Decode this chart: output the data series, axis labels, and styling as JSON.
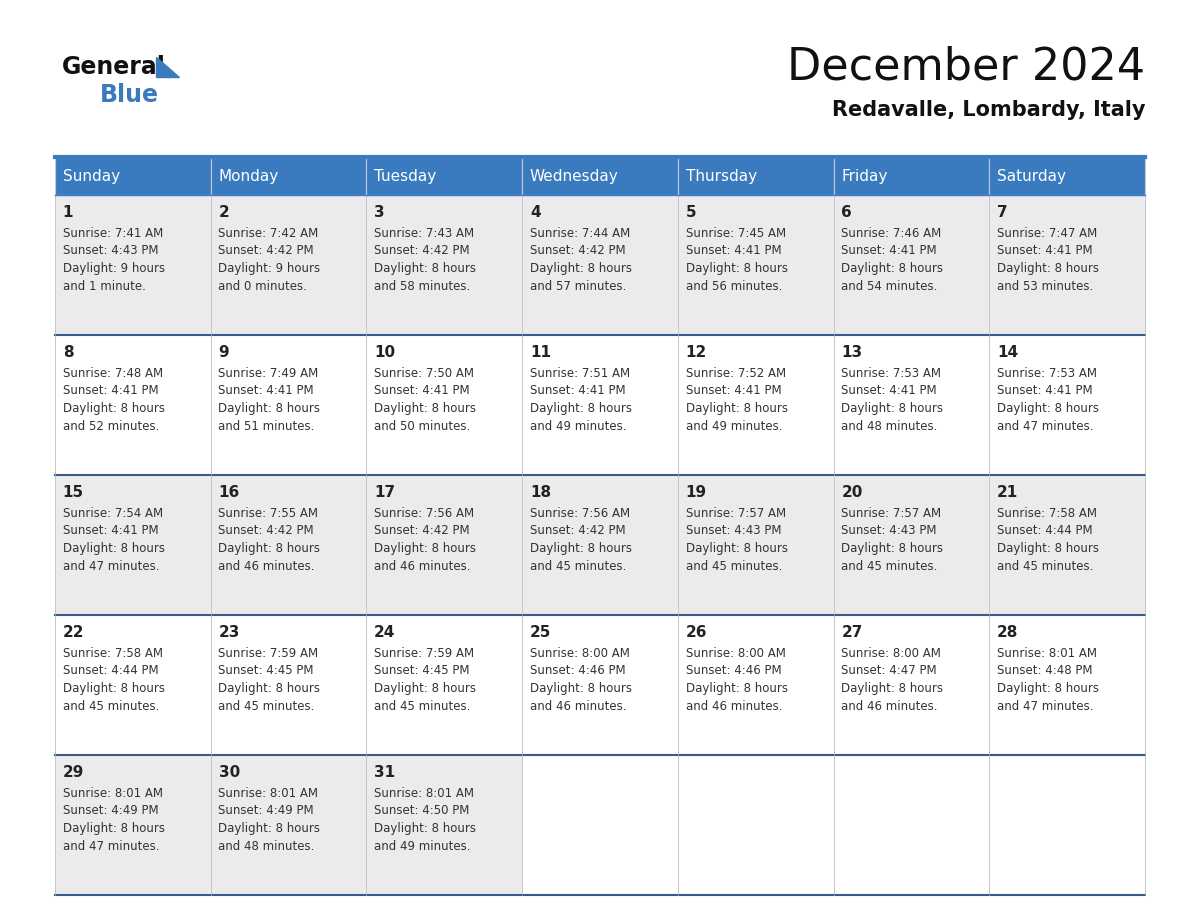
{
  "title": "December 2024",
  "subtitle": "Redavalle, Lombardy, Italy",
  "header_color": "#3a7abf",
  "header_text_color": "#ffffff",
  "cell_bg_even": "#ebebeb",
  "cell_bg_odd": "#ffffff",
  "day_names": [
    "Sunday",
    "Monday",
    "Tuesday",
    "Wednesday",
    "Thursday",
    "Friday",
    "Saturday"
  ],
  "days": [
    {
      "day": 1,
      "col": 0,
      "row": 0,
      "sunrise": "7:41 AM",
      "sunset": "4:43 PM",
      "daylight": "9 hours and 1 minute."
    },
    {
      "day": 2,
      "col": 1,
      "row": 0,
      "sunrise": "7:42 AM",
      "sunset": "4:42 PM",
      "daylight": "9 hours and 0 minutes."
    },
    {
      "day": 3,
      "col": 2,
      "row": 0,
      "sunrise": "7:43 AM",
      "sunset": "4:42 PM",
      "daylight": "8 hours and 58 minutes."
    },
    {
      "day": 4,
      "col": 3,
      "row": 0,
      "sunrise": "7:44 AM",
      "sunset": "4:42 PM",
      "daylight": "8 hours and 57 minutes."
    },
    {
      "day": 5,
      "col": 4,
      "row": 0,
      "sunrise": "7:45 AM",
      "sunset": "4:41 PM",
      "daylight": "8 hours and 56 minutes."
    },
    {
      "day": 6,
      "col": 5,
      "row": 0,
      "sunrise": "7:46 AM",
      "sunset": "4:41 PM",
      "daylight": "8 hours and 54 minutes."
    },
    {
      "day": 7,
      "col": 6,
      "row": 0,
      "sunrise": "7:47 AM",
      "sunset": "4:41 PM",
      "daylight": "8 hours and 53 minutes."
    },
    {
      "day": 8,
      "col": 0,
      "row": 1,
      "sunrise": "7:48 AM",
      "sunset": "4:41 PM",
      "daylight": "8 hours and 52 minutes."
    },
    {
      "day": 9,
      "col": 1,
      "row": 1,
      "sunrise": "7:49 AM",
      "sunset": "4:41 PM",
      "daylight": "8 hours and 51 minutes."
    },
    {
      "day": 10,
      "col": 2,
      "row": 1,
      "sunrise": "7:50 AM",
      "sunset": "4:41 PM",
      "daylight": "8 hours and 50 minutes."
    },
    {
      "day": 11,
      "col": 3,
      "row": 1,
      "sunrise": "7:51 AM",
      "sunset": "4:41 PM",
      "daylight": "8 hours and 49 minutes."
    },
    {
      "day": 12,
      "col": 4,
      "row": 1,
      "sunrise": "7:52 AM",
      "sunset": "4:41 PM",
      "daylight": "8 hours and 49 minutes."
    },
    {
      "day": 13,
      "col": 5,
      "row": 1,
      "sunrise": "7:53 AM",
      "sunset": "4:41 PM",
      "daylight": "8 hours and 48 minutes."
    },
    {
      "day": 14,
      "col": 6,
      "row": 1,
      "sunrise": "7:53 AM",
      "sunset": "4:41 PM",
      "daylight": "8 hours and 47 minutes."
    },
    {
      "day": 15,
      "col": 0,
      "row": 2,
      "sunrise": "7:54 AM",
      "sunset": "4:41 PM",
      "daylight": "8 hours and 47 minutes."
    },
    {
      "day": 16,
      "col": 1,
      "row": 2,
      "sunrise": "7:55 AM",
      "sunset": "4:42 PM",
      "daylight": "8 hours and 46 minutes."
    },
    {
      "day": 17,
      "col": 2,
      "row": 2,
      "sunrise": "7:56 AM",
      "sunset": "4:42 PM",
      "daylight": "8 hours and 46 minutes."
    },
    {
      "day": 18,
      "col": 3,
      "row": 2,
      "sunrise": "7:56 AM",
      "sunset": "4:42 PM",
      "daylight": "8 hours and 45 minutes."
    },
    {
      "day": 19,
      "col": 4,
      "row": 2,
      "sunrise": "7:57 AM",
      "sunset": "4:43 PM",
      "daylight": "8 hours and 45 minutes."
    },
    {
      "day": 20,
      "col": 5,
      "row": 2,
      "sunrise": "7:57 AM",
      "sunset": "4:43 PM",
      "daylight": "8 hours and 45 minutes."
    },
    {
      "day": 21,
      "col": 6,
      "row": 2,
      "sunrise": "7:58 AM",
      "sunset": "4:44 PM",
      "daylight": "8 hours and 45 minutes."
    },
    {
      "day": 22,
      "col": 0,
      "row": 3,
      "sunrise": "7:58 AM",
      "sunset": "4:44 PM",
      "daylight": "8 hours and 45 minutes."
    },
    {
      "day": 23,
      "col": 1,
      "row": 3,
      "sunrise": "7:59 AM",
      "sunset": "4:45 PM",
      "daylight": "8 hours and 45 minutes."
    },
    {
      "day": 24,
      "col": 2,
      "row": 3,
      "sunrise": "7:59 AM",
      "sunset": "4:45 PM",
      "daylight": "8 hours and 45 minutes."
    },
    {
      "day": 25,
      "col": 3,
      "row": 3,
      "sunrise": "8:00 AM",
      "sunset": "4:46 PM",
      "daylight": "8 hours and 46 minutes."
    },
    {
      "day": 26,
      "col": 4,
      "row": 3,
      "sunrise": "8:00 AM",
      "sunset": "4:46 PM",
      "daylight": "8 hours and 46 minutes."
    },
    {
      "day": 27,
      "col": 5,
      "row": 3,
      "sunrise": "8:00 AM",
      "sunset": "4:47 PM",
      "daylight": "8 hours and 46 minutes."
    },
    {
      "day": 28,
      "col": 6,
      "row": 3,
      "sunrise": "8:01 AM",
      "sunset": "4:48 PM",
      "daylight": "8 hours and 47 minutes."
    },
    {
      "day": 29,
      "col": 0,
      "row": 4,
      "sunrise": "8:01 AM",
      "sunset": "4:49 PM",
      "daylight": "8 hours and 47 minutes."
    },
    {
      "day": 30,
      "col": 1,
      "row": 4,
      "sunrise": "8:01 AM",
      "sunset": "4:49 PM",
      "daylight": "8 hours and 48 minutes."
    },
    {
      "day": 31,
      "col": 2,
      "row": 4,
      "sunrise": "8:01 AM",
      "sunset": "4:50 PM",
      "daylight": "8 hours and 49 minutes."
    }
  ],
  "logo_color_general": "#111111",
  "logo_color_blue": "#3a7abf",
  "logo_triangle_color": "#3a7abf",
  "title_fontsize": 32,
  "subtitle_fontsize": 15,
  "header_fontsize": 11,
  "day_num_fontsize": 11,
  "cell_text_fontsize": 8.5
}
